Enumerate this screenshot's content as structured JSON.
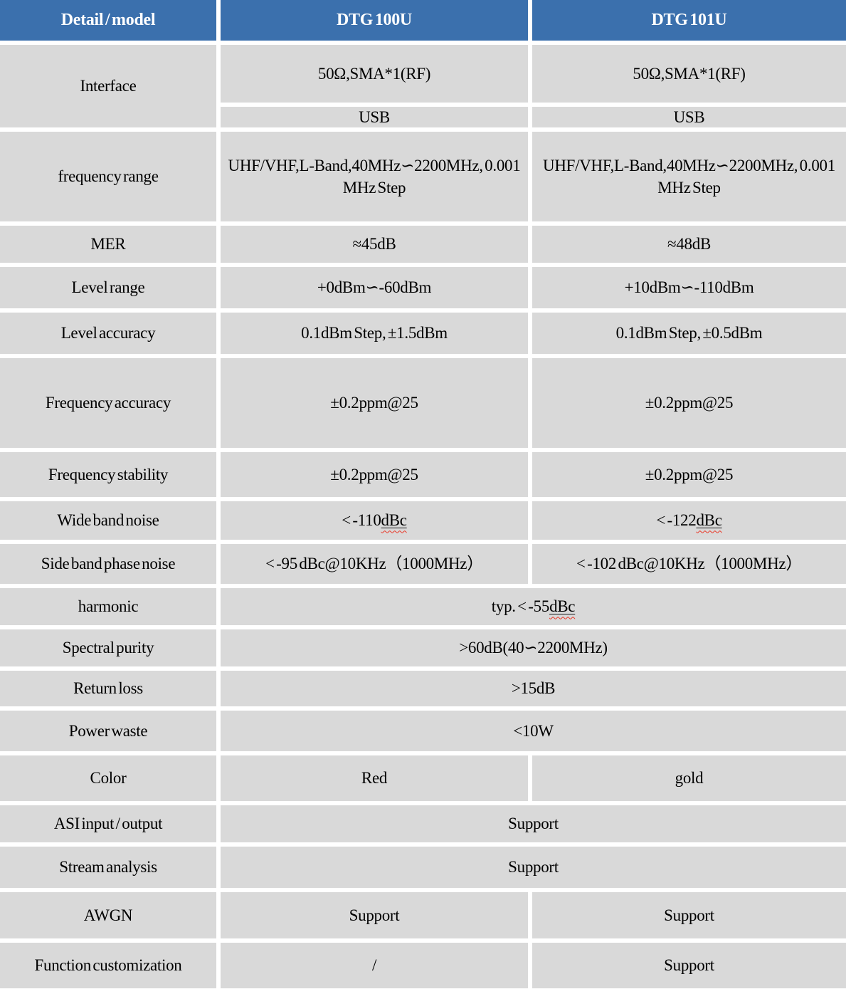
{
  "colors": {
    "header_bg": "#3b70ad",
    "header_text": "#ffffff",
    "cell_bg": "#d9d9d9",
    "grid_gap": "#ffffff",
    "body_text": "#000000",
    "squiggle_red": "#ea3323"
  },
  "header": {
    "detail_model": "Detail / model",
    "dtg_100u": "DTG 100U",
    "dtg_101u": "DTG 101U"
  },
  "rows": {
    "interface": {
      "label": "Interface",
      "rf_100u": "50Ω,SMA*1(RF)",
      "rf_101u": "50Ω,SMA*1(RF)",
      "usb_100u": "USB",
      "usb_101u": "USB"
    },
    "frequency_range": {
      "label": "frequency range",
      "v_100u": "UHF/VHF,L-Band,40MHz∽2200MHz, 0.001MHz Step",
      "v_101u": "UHF/VHF,L-Band,40MHz∽2200MHz, 0.001MHz Step"
    },
    "mer": {
      "label": "MER",
      "v_100u": "≈45dB",
      "v_101u": "≈48dB"
    },
    "level_range": {
      "label": "Level range",
      "v_100u": "+0dBm∽-60dBm",
      "v_101u": "+10dBm∽-110dBm"
    },
    "level_accuracy": {
      "label": "Level accuracy",
      "v_100u": "0.1dBm Step, ±1.5dBm",
      "v_101u": "0.1dBm Step, ±0.5dBm"
    },
    "frequency_accuracy": {
      "label": "Frequency accuracy",
      "v_100u": "±0.2ppm@25",
      "v_101u": "±0.2ppm@25"
    },
    "frequency_stability": {
      "label": "Frequency stability",
      "v_100u": "±0.2ppm@25",
      "v_101u": "±0.2ppm@25"
    },
    "wide_band_noise": {
      "label": "Wide band noise",
      "v_100u_pre": "< -110 ",
      "v_100u_unit": "dBc",
      "v_101u_pre": "< -122 ",
      "v_101u_unit": "dBc"
    },
    "side_band_phase_noise": {
      "label": "Side band phase noise",
      "v_100u": "< -95 dBc@10KHz（1000MHz）",
      "v_101u": "< -102 dBc@10KHz（1000MHz）"
    },
    "harmonic": {
      "label": "harmonic",
      "v_pre": "typ. < -55 ",
      "v_unit": "dBc"
    },
    "spectral_purity": {
      "label": "Spectral purity",
      "v": ">60dB(40∽2200MHz)"
    },
    "return_loss": {
      "label": "Return loss",
      "v": ">15dB"
    },
    "power_waste": {
      "label": "Power waste",
      "v": "<10W"
    },
    "color": {
      "label": "Color",
      "v_100u": "Red",
      "v_101u": "gold"
    },
    "asi_io": {
      "label": "ASI input / output",
      "v": "Support"
    },
    "stream_analysis": {
      "label": "Stream analysis",
      "v": "Support"
    },
    "awgn": {
      "label": "AWGN",
      "v_100u": "Support",
      "v_101u": "Support"
    },
    "function_customization": {
      "label": "Function customization",
      "v_100u": "/",
      "v_101u": "Support"
    }
  }
}
